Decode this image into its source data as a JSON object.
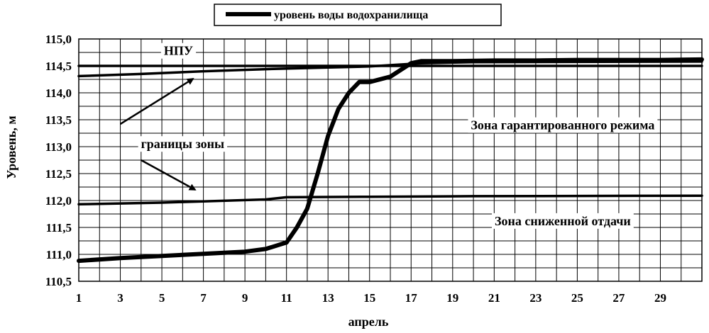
{
  "chart_data": {
    "type": "line",
    "xlabel": "апрель",
    "ylabel": "Уровень, м",
    "xlim": [
      1,
      31
    ],
    "ylim": [
      110.5,
      115.0
    ],
    "x_ticks": [
      1,
      3,
      5,
      7,
      9,
      11,
      13,
      15,
      17,
      19,
      21,
      23,
      25,
      27,
      29
    ],
    "y_ticks": [
      110.5,
      111.0,
      111.5,
      112.0,
      112.5,
      113.0,
      113.5,
      114.0,
      114.5,
      115.0
    ],
    "y_tick_labels": [
      "110,5",
      "111,0",
      "111,5",
      "112,0",
      "112,5",
      "113,0",
      "113,5",
      "114,0",
      "114,5",
      "115,0"
    ],
    "grid": true,
    "legend": {
      "position": "top-center",
      "entries": [
        "уровень воды водохранилища"
      ]
    },
    "series": [
      {
        "name": "уровень воды водохранилища",
        "role": "main",
        "x": [
          1,
          3,
          5,
          7,
          9,
          10,
          11,
          11.5,
          12,
          12.5,
          13,
          13.5,
          14,
          14.5,
          15,
          16,
          17,
          17.5,
          19,
          21,
          23,
          25,
          27,
          29,
          31
        ],
        "y": [
          110.88,
          110.93,
          110.97,
          111.01,
          111.05,
          111.1,
          111.22,
          111.5,
          111.85,
          112.5,
          113.2,
          113.7,
          114.0,
          114.2,
          114.2,
          114.3,
          114.55,
          114.59,
          114.59,
          114.6,
          114.6,
          114.61,
          114.61,
          114.61,
          114.62
        ]
      },
      {
        "role": "npu",
        "x": [
          1,
          31
        ],
        "y": [
          114.5,
          114.5
        ]
      },
      {
        "role": "zone-upper-boundary",
        "x": [
          1,
          4,
          7,
          10,
          13,
          15,
          17.5,
          20,
          31
        ],
        "y": [
          114.31,
          114.35,
          114.4,
          114.44,
          114.47,
          114.49,
          114.55,
          114.57,
          114.58
        ]
      },
      {
        "role": "zone-lower-boundary",
        "x": [
          1,
          5,
          10,
          11,
          15,
          20,
          31
        ],
        "y": [
          111.93,
          111.96,
          112.02,
          112.06,
          112.07,
          112.08,
          112.09
        ]
      }
    ],
    "annotations": [
      {
        "text": "НПУ",
        "x": 5.8,
        "y": 114.78
      },
      {
        "text": "границы зоны",
        "x": 6.0,
        "y": 113.05
      },
      {
        "text": "Зона гарантированного режима",
        "x": 24.3,
        "y": 113.4
      },
      {
        "text": "Зона сниженной отдачи",
        "x": 24.3,
        "y": 111.62
      }
    ],
    "arrows": [
      {
        "from": [
          3.0,
          113.42
        ],
        "to": [
          6.5,
          114.26
        ]
      },
      {
        "from": [
          4.0,
          112.75
        ],
        "to": [
          6.6,
          112.2
        ]
      }
    ]
  }
}
